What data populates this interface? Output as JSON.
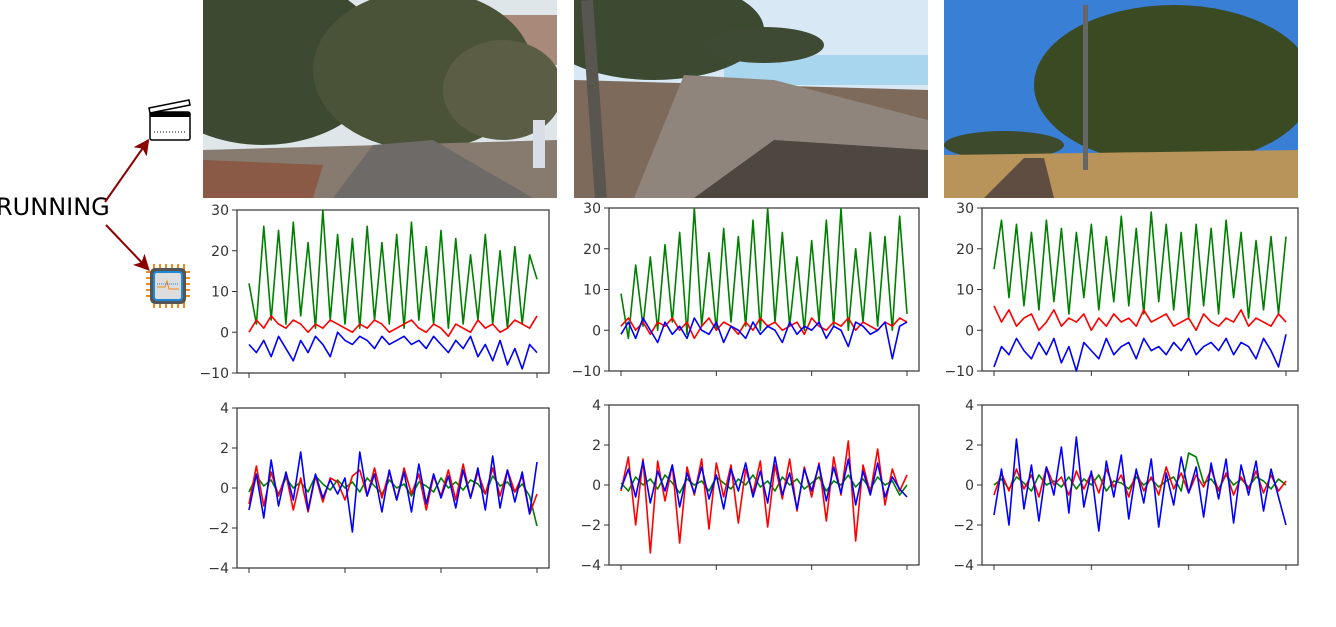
{
  "activity_label": "RUNNING",
  "icons": {
    "video": "clapperboard-icon",
    "sensor": "sensor-chip-icon",
    "arrow_color": "#8b0000"
  },
  "photos": [
    {
      "scene": "tree-lined park path with walker",
      "sky": "#dfe6ea",
      "ground": "#6f6863"
    },
    {
      "scene": "stone promenade by water",
      "sky": "#d8e8f5",
      "ground": "#8a7f76"
    },
    {
      "scene": "park path under blue sky",
      "sky": "#3a7fd6",
      "ground": "#b8935a"
    }
  ],
  "colors": {
    "x_axis_series": "#ff0000",
    "y_axis_series": "#008000",
    "z_axis_series": "#0000ff"
  },
  "chart_data": [
    {
      "type": "line",
      "row": "top",
      "column": 1,
      "ylim": [
        -10,
        30
      ],
      "yticks": [
        "−10",
        "0",
        "10",
        "20",
        "30"
      ],
      "xticks": 4,
      "grid": false,
      "series": [
        {
          "color": "#008000",
          "values": [
            12,
            2,
            26,
            3,
            25,
            2,
            27,
            4,
            22,
            1,
            30,
            3,
            24,
            2,
            23,
            1,
            26,
            3,
            22,
            2,
            24,
            1,
            27,
            3,
            21,
            2,
            25,
            1,
            23,
            2,
            19,
            3,
            24,
            2,
            20,
            1,
            21,
            2,
            19,
            13
          ]
        },
        {
          "color": "#ff0000",
          "values": [
            0,
            3,
            1,
            4,
            2,
            1,
            3,
            2,
            0,
            2,
            1,
            3,
            2,
            1,
            0,
            2,
            1,
            3,
            2,
            0,
            1,
            2,
            3,
            1,
            0,
            2,
            1,
            -1,
            2,
            1,
            0,
            3,
            1,
            2,
            0,
            1,
            3,
            2,
            1,
            4
          ]
        },
        {
          "color": "#0000ff",
          "values": [
            -3,
            -5,
            -2,
            -6,
            -1,
            -4,
            -7,
            -2,
            -5,
            -1,
            -3,
            -6,
            0,
            -2,
            -3,
            -1,
            -2,
            -4,
            -1,
            -3,
            -2,
            -1,
            -3,
            -2,
            -4,
            -1,
            -3,
            -5,
            -2,
            -4,
            -1,
            -6,
            -3,
            -7,
            -2,
            -8,
            -4,
            -9,
            -3,
            -5
          ]
        }
      ]
    },
    {
      "type": "line",
      "row": "top",
      "column": 2,
      "ylim": [
        -10,
        30
      ],
      "yticks": [
        "−10",
        "0",
        "10",
        "20",
        "30"
      ],
      "xticks": 4,
      "grid": false,
      "series": [
        {
          "color": "#008000",
          "values": [
            9,
            -2,
            16,
            1,
            18,
            0,
            21,
            2,
            24,
            -1,
            30,
            1,
            19,
            0,
            25,
            2,
            23,
            1,
            27,
            0,
            30,
            2,
            24,
            1,
            18,
            0,
            22,
            2,
            27,
            1,
            30,
            0,
            20,
            2,
            24,
            1,
            23,
            0,
            28,
            4
          ]
        },
        {
          "color": "#ff0000",
          "values": [
            1,
            3,
            0,
            2,
            -1,
            2,
            1,
            3,
            0,
            2,
            -2,
            1,
            3,
            0,
            2,
            1,
            -1,
            2,
            0,
            3,
            1,
            2,
            0,
            1,
            2,
            -1,
            3,
            1,
            0,
            2,
            1,
            3,
            0,
            2,
            1,
            0,
            2,
            1,
            3,
            2
          ]
        },
        {
          "color": "#0000ff",
          "values": [
            -1,
            2,
            -2,
            3,
            0,
            -3,
            2,
            -1,
            1,
            -2,
            3,
            0,
            -1,
            2,
            -3,
            1,
            0,
            -2,
            2,
            -1,
            1,
            0,
            -3,
            2,
            -1,
            1,
            0,
            2,
            -2,
            1,
            0,
            -4,
            2,
            1,
            -1,
            0,
            2,
            -7,
            1,
            2
          ]
        }
      ]
    },
    {
      "type": "line",
      "row": "top",
      "column": 3,
      "ylim": [
        -10,
        30
      ],
      "yticks": [
        "−10",
        "0",
        "10",
        "20",
        "30"
      ],
      "xticks": 4,
      "grid": false,
      "series": [
        {
          "color": "#008000",
          "values": [
            15,
            27,
            8,
            26,
            6,
            24,
            5,
            27,
            7,
            25,
            4,
            24,
            8,
            26,
            5,
            23,
            7,
            28,
            6,
            25,
            4,
            29,
            7,
            26,
            5,
            24,
            3,
            26,
            6,
            25,
            4,
            27,
            8,
            24,
            3,
            22,
            5,
            23,
            4,
            23
          ]
        },
        {
          "color": "#ff0000",
          "values": [
            6,
            2,
            5,
            1,
            3,
            4,
            0,
            2,
            5,
            1,
            3,
            2,
            4,
            0,
            3,
            1,
            4,
            2,
            3,
            1,
            5,
            2,
            3,
            4,
            1,
            2,
            3,
            0,
            4,
            2,
            1,
            3,
            2,
            5,
            1,
            3,
            2,
            1,
            4,
            2
          ]
        },
        {
          "color": "#0000ff",
          "values": [
            -9,
            -4,
            -6,
            -2,
            -5,
            -7,
            -3,
            -6,
            -2,
            -8,
            -4,
            -10,
            -3,
            -5,
            -7,
            -2,
            -6,
            -4,
            -3,
            -7,
            -2,
            -5,
            -4,
            -6,
            -3,
            -5,
            -2,
            -6,
            -4,
            -3,
            -5,
            -2,
            -6,
            -3,
            -4,
            -7,
            -2,
            -5,
            -9,
            -1
          ]
        }
      ]
    },
    {
      "type": "line",
      "row": "bottom",
      "column": 1,
      "ylim": [
        -4,
        4
      ],
      "yticks": [
        "−4",
        "−2",
        "0",
        "2",
        "4"
      ],
      "xticks": 4,
      "grid": false,
      "series": [
        {
          "color": "#008000",
          "values": [
            -0.2,
            0.6,
            0.1,
            0.4,
            -0.3,
            0.5,
            0,
            0.3,
            -0.2,
            0.6,
            0.2,
            -0.1,
            0.4,
            0,
            0.3,
            -0.2,
            0.5,
            0.1,
            -0.3,
            0.4,
            0,
            0.2,
            -0.4,
            0.3,
            0.1,
            -0.2,
            0.5,
            0,
            0.3,
            -0.1,
            0.4,
            0.2,
            -0.3,
            0.6,
            0.1,
            0.3,
            -0.2,
            0.2,
            -0.4,
            -1.9
          ]
        },
        {
          "color": "#ff0000",
          "values": [
            -0.8,
            1.1,
            -0.9,
            0.8,
            -0.4,
            0.7,
            -1.1,
            0.5,
            -1.2,
            0.6,
            -0.7,
            0.5,
            0.3,
            -0.6,
            0.6,
            0.9,
            -0.4,
            1.0,
            -0.5,
            0.8,
            -0.6,
            1.0,
            -0.3,
            0.7,
            -1.1,
            0.6,
            -0.4,
            0.9,
            -0.6,
            1.2,
            -0.5,
            0.8,
            -0.3,
            1.0,
            -0.4,
            0.9,
            -0.2,
            0.6,
            -1.3,
            -0.3
          ]
        },
        {
          "color": "#0000ff",
          "values": [
            -1.1,
            0.7,
            -1.5,
            1.4,
            -0.9,
            0.8,
            -0.6,
            1.8,
            -1.1,
            0.7,
            -0.5,
            0.4,
            -0.3,
            0.5,
            -2.2,
            1.8,
            -0.4,
            0.7,
            -1.2,
            0.9,
            -0.6,
            0.8,
            -1.2,
            1.2,
            -0.8,
            0.7,
            -0.5,
            0.6,
            -1.0,
            0.9,
            -0.5,
            1.0,
            -1.1,
            1.6,
            -1.0,
            0.9,
            -0.7,
            0.8,
            -1.3,
            1.3
          ]
        }
      ]
    },
    {
      "type": "line",
      "row": "bottom",
      "column": 2,
      "ylim": [
        -4,
        4
      ],
      "yticks": [
        "−4",
        "−2",
        "0",
        "2",
        "4"
      ],
      "xticks": 4,
      "grid": false,
      "series": [
        {
          "color": "#008000",
          "values": [
            0.1,
            -0.3,
            0.4,
            0,
            0.3,
            -0.2,
            0.5,
            0.1,
            -0.4,
            0.3,
            0,
            0.2,
            -0.3,
            0.4,
            0.1,
            -0.2,
            0.3,
            0,
            0.5,
            -0.1,
            0.2,
            -0.3,
            0.4,
            0,
            0.3,
            -0.2,
            0.1,
            0.4,
            -0.3,
            0.2,
            0,
            0.5,
            -0.1,
            0.3,
            -0.2,
            0.4,
            0,
            0.2,
            -0.5,
            0
          ]
        },
        {
          "color": "#ff0000",
          "values": [
            -0.3,
            1.4,
            -2.0,
            1.3,
            -3.4,
            1.2,
            -0.8,
            1.0,
            -2.9,
            0.9,
            -0.5,
            1.3,
            -2.2,
            1.1,
            -0.6,
            1.0,
            -1.9,
            0.8,
            -0.4,
            1.2,
            -2.1,
            1.0,
            -0.7,
            1.3,
            -1.3,
            0.9,
            -0.6,
            1.1,
            -1.8,
            1.4,
            -0.5,
            2.2,
            -2.8,
            1.0,
            -0.4,
            1.8,
            -1.0,
            0.8,
            -0.3,
            0.5
          ]
        },
        {
          "color": "#0000ff",
          "values": [
            -0.2,
            0.8,
            -0.6,
            1.2,
            -0.9,
            0.7,
            -0.3,
            1.0,
            -1.1,
            0.6,
            -0.4,
            0.9,
            -0.7,
            0.5,
            -1.2,
            0.8,
            -0.3,
            1.1,
            -0.6,
            0.7,
            -0.9,
            1.4,
            -0.5,
            0.6,
            -1.2,
            0.8,
            -0.3,
            1.0,
            -0.8,
            0.9,
            -0.4,
            1.3,
            -1.0,
            0.7,
            -0.5,
            1.1,
            -0.6,
            0.4,
            -0.2,
            -0.6
          ]
        }
      ]
    },
    {
      "type": "line",
      "row": "bottom",
      "column": 3,
      "ylim": [
        -4,
        4
      ],
      "yticks": [
        "−4",
        "−2",
        "0",
        "2",
        "4"
      ],
      "xticks": 4,
      "grid": false,
      "series": [
        {
          "color": "#008000",
          "values": [
            0,
            0.3,
            -0.2,
            0.4,
            0.1,
            -0.3,
            0.5,
            0,
            0.2,
            -0.1,
            0.4,
            -0.2,
            0.3,
            0,
            0.5,
            -0.3,
            0.2,
            0.1,
            -0.2,
            0.4,
            0,
            0.3,
            -0.1,
            0.2,
            0.4,
            -0.3,
            1.6,
            1.4,
            0.1,
            0.3,
            -0.2,
            0.5,
            0,
            0.3,
            -0.1,
            0.4,
            0.2,
            -0.2,
            0.3,
            0
          ]
        },
        {
          "color": "#ff0000",
          "values": [
            -0.5,
            0.6,
            -0.3,
            0.8,
            -0.2,
            0.5,
            -0.6,
            0.9,
            0,
            0.4,
            -0.5,
            0.7,
            -0.2,
            0.6,
            -0.4,
            0.8,
            -0.1,
            0.5,
            -0.6,
            0.7,
            -0.3,
            0.4,
            -0.5,
            0.9,
            -0.2,
            0.6,
            -0.4,
            0.5,
            -0.1,
            0.8,
            -0.3,
            0.6,
            -0.5,
            0.4,
            -0.2,
            0.7,
            -0.4,
            0.5,
            -0.3,
            0.2
          ]
        },
        {
          "color": "#0000ff",
          "values": [
            -1.5,
            0.8,
            -2.0,
            2.3,
            -1.2,
            1.0,
            -1.8,
            0.9,
            -0.5,
            1.9,
            -1.4,
            2.4,
            -1.1,
            0.7,
            -2.3,
            1.2,
            -0.6,
            1.5,
            -1.7,
            0.8,
            -0.9,
            1.3,
            -2.1,
            0.6,
            -1.0,
            1.4,
            -0.4,
            0.9,
            -1.6,
            1.1,
            -0.7,
            1.3,
            -1.9,
            1.0,
            -0.5,
            1.2,
            -1.3,
            0.8,
            -0.6,
            -2.0
          ]
        }
      ]
    }
  ]
}
